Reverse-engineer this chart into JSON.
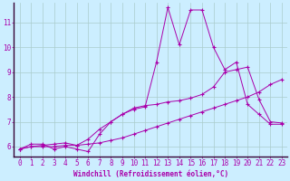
{
  "xlabel": "Windchill (Refroidissement éolien,°C)",
  "bg_color": "#cceeff",
  "line_color": "#aa00aa",
  "grid_color": "#aacccc",
  "spine_color": "#8899aa",
  "x_ticks": [
    0,
    1,
    2,
    3,
    4,
    5,
    6,
    7,
    8,
    9,
    10,
    11,
    12,
    13,
    14,
    15,
    16,
    17,
    18,
    19,
    20,
    21,
    22,
    23
  ],
  "y_ticks": [
    6,
    7,
    8,
    9,
    10,
    11
  ],
  "ylim": [
    5.6,
    11.8
  ],
  "xlim": [
    -0.5,
    23.5
  ],
  "series1_x": [
    0,
    1,
    2,
    3,
    4,
    5,
    6,
    7,
    8,
    9,
    10,
    11,
    12,
    13,
    14,
    15,
    16,
    17,
    18,
    19,
    20,
    21,
    22,
    23
  ],
  "series1_y": [
    5.9,
    6.1,
    6.1,
    5.9,
    6.0,
    5.9,
    5.8,
    6.5,
    7.0,
    7.3,
    7.5,
    7.6,
    9.4,
    11.6,
    10.1,
    11.5,
    11.5,
    10.0,
    9.1,
    9.4,
    7.7,
    7.3,
    6.9,
    6.9
  ],
  "series2_x": [
    0,
    1,
    2,
    3,
    4,
    5,
    6,
    7,
    8,
    9,
    10,
    11,
    12,
    13,
    14,
    15,
    16,
    17,
    18,
    19,
    20,
    21,
    22,
    23
  ],
  "series2_y": [
    5.9,
    6.0,
    6.0,
    6.0,
    6.05,
    6.05,
    6.1,
    6.15,
    6.25,
    6.35,
    6.5,
    6.65,
    6.8,
    6.95,
    7.1,
    7.25,
    7.4,
    7.55,
    7.7,
    7.85,
    8.0,
    8.2,
    8.5,
    8.7
  ],
  "series3_x": [
    0,
    1,
    2,
    3,
    4,
    5,
    6,
    7,
    8,
    9,
    10,
    11,
    12,
    13,
    14,
    15,
    16,
    17,
    18,
    19,
    20,
    21,
    22,
    23
  ],
  "series3_y": [
    5.9,
    6.0,
    6.05,
    6.1,
    6.15,
    6.05,
    6.3,
    6.7,
    7.0,
    7.3,
    7.55,
    7.65,
    7.7,
    7.8,
    7.85,
    7.95,
    8.1,
    8.4,
    9.0,
    9.1,
    9.2,
    7.9,
    7.0,
    6.95
  ],
  "xlabel_fontsize": 5.5,
  "tick_fontsize": 5.5,
  "lw": 0.7,
  "ms": 2.5
}
